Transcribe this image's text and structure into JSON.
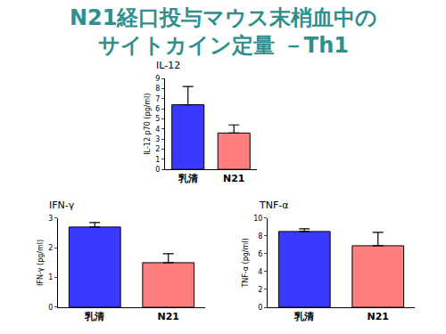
{
  "title": [
    "N21経口投与マウス末梢血中の",
    "サイトカイン定量 －Th1"
  ],
  "chart_data": [
    {
      "type": "bar",
      "title": "IL-12",
      "y_label": "IL-12 p70 (pg/ml)",
      "categories": [
        "乳清",
        "N21"
      ],
      "values": [
        6.4,
        3.6
      ],
      "errors": [
        1.8,
        0.8
      ],
      "colors": [
        "#3a3aff",
        "#ff7f7f"
      ],
      "ylim": [
        0,
        9
      ],
      "yticks": [
        0,
        1,
        2,
        3,
        4,
        5,
        6,
        7,
        8,
        9
      ],
      "grid": false
    },
    {
      "type": "bar",
      "title": "IFN-γ",
      "y_label": "IFN-γ (pg/ml)",
      "categories": [
        "乳清",
        "N21"
      ],
      "values": [
        2.7,
        1.5
      ],
      "errors": [
        0.15,
        0.3
      ],
      "colors": [
        "#3a3aff",
        "#ff7f7f"
      ],
      "ylim": [
        0,
        3
      ],
      "yticks": [
        0,
        1,
        2,
        3
      ],
      "grid": false
    },
    {
      "type": "bar",
      "title": "TNF-α",
      "y_label": "TNF-α (pg/ml)",
      "categories": [
        "乳清",
        "N21"
      ],
      "values": [
        8.5,
        6.9
      ],
      "errors": [
        0.3,
        1.5
      ],
      "colors": [
        "#3a3aff",
        "#ff7f7f"
      ],
      "ylim": [
        0,
        10
      ],
      "yticks": [
        0,
        2,
        4,
        6,
        8,
        10
      ],
      "grid": false
    }
  ]
}
